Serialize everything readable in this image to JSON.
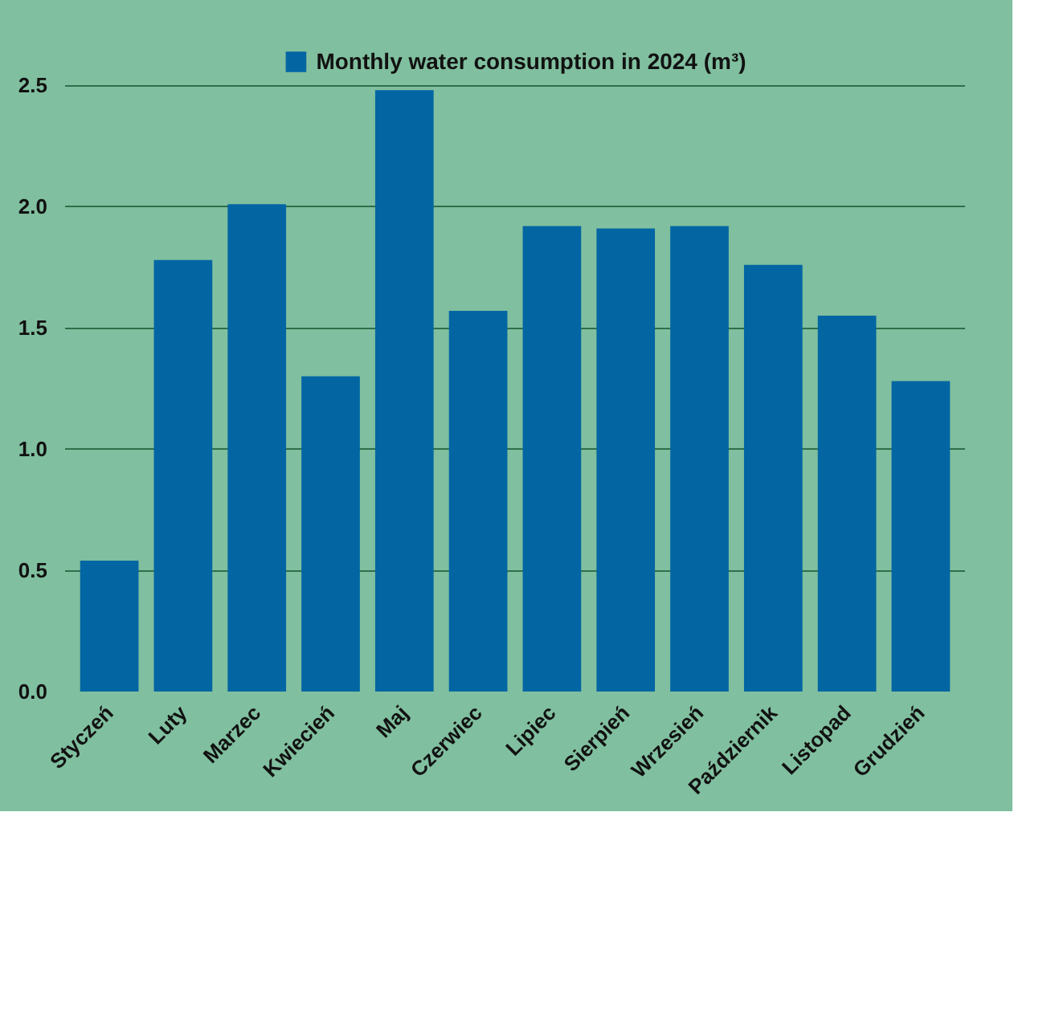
{
  "chart_data": {
    "type": "bar",
    "categories": [
      "Styczeń",
      "Luty",
      "Marzec",
      "Kwiecień",
      "Maj",
      "Czerwiec",
      "Lipiec",
      "Sierpień",
      "Wrzesień",
      "Październik",
      "Listopad",
      "Grudzień"
    ],
    "series": [
      {
        "name": "Monthly water consumption in 2024 (m³)",
        "color": "#0366a3",
        "values": [
          0.54,
          1.78,
          2.01,
          1.3,
          2.48,
          1.57,
          1.92,
          1.91,
          1.92,
          1.76,
          1.55,
          1.28
        ]
      }
    ],
    "ylim": [
      0,
      2.65
    ],
    "yticks": [
      {
        "value": 0,
        "label": "0.0"
      },
      {
        "value": 0.5,
        "label": "0.5"
      },
      {
        "value": 1,
        "label": "1.0"
      },
      {
        "value": 1.5,
        "label": "1.5"
      },
      {
        "value": 2,
        "label": "2.0"
      },
      {
        "value": 2.5,
        "label": "2.5"
      }
    ],
    "grid": "y",
    "legend": "top"
  }
}
